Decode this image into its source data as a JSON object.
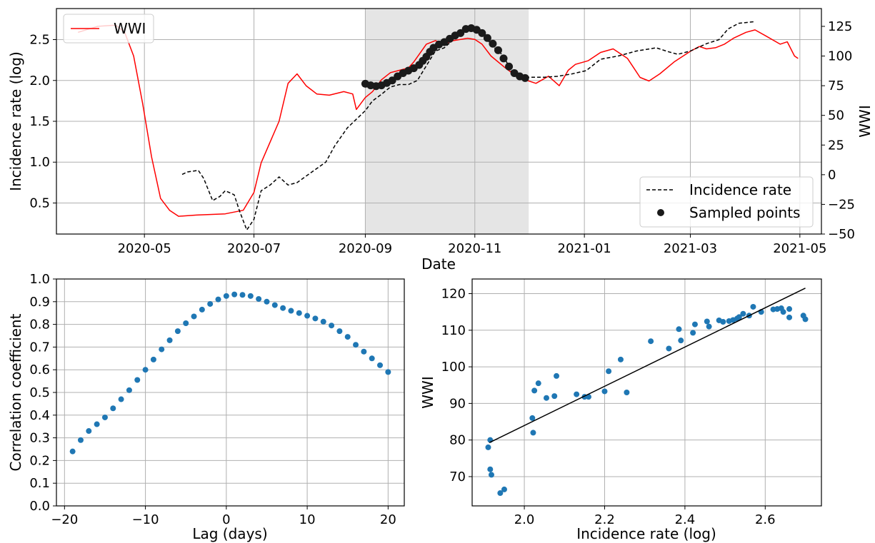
{
  "chart_data": [
    {
      "id": "top",
      "type": "line",
      "xlabel": "Date",
      "ylabel_left": "Incidence rate (log)",
      "ylabel_right": "WWI",
      "x_range": [
        "2020-03-13",
        "2021-05-13"
      ],
      "ylim_left": [
        0.12,
        2.88
      ],
      "ylim_right": [
        -50,
        140
      ],
      "x_ticks": [
        "2020-05",
        "2020-07",
        "2020-09",
        "2020-11",
        "2021-01",
        "2021-03",
        "2021-05"
      ],
      "y_ticks_left": [
        "0.5",
        "1.0",
        "1.5",
        "2.0",
        "2.5"
      ],
      "y_ticks_left_values": [
        0.5,
        1.0,
        1.5,
        2.0,
        2.5
      ],
      "y_ticks_right": [
        "−50",
        "−25",
        "0",
        "25",
        "50",
        "75",
        "100",
        "125"
      ],
      "y_ticks_right_values": [
        -50,
        -25,
        0,
        25,
        50,
        75,
        100,
        125
      ],
      "shaded_region": [
        "2020-09-01",
        "2020-12-01"
      ],
      "grid": true,
      "legend_right_axis_location": "upper-left",
      "legend_left_axis_location": "lower-right",
      "series": [
        {
          "name": "WWI",
          "axis": "right",
          "color": "#ff0000",
          "style": "solid",
          "points": [
            [
              "2020-03-25",
              120
            ],
            [
              "2020-04-05",
              125
            ],
            [
              "2020-04-15",
              126
            ],
            [
              "2020-04-20",
              120
            ],
            [
              "2020-04-25",
              100
            ],
            [
              "2020-04-30",
              60
            ],
            [
              "2020-05-05",
              15
            ],
            [
              "2020-05-10",
              -20
            ],
            [
              "2020-05-15",
              -30
            ],
            [
              "2020-05-20",
              -35
            ],
            [
              "2020-05-30",
              -34
            ],
            [
              "2020-06-15",
              -33
            ],
            [
              "2020-06-25",
              -30
            ],
            [
              "2020-07-01",
              -15
            ],
            [
              "2020-07-05",
              10
            ],
            [
              "2020-07-15",
              45
            ],
            [
              "2020-07-20",
              77
            ],
            [
              "2020-07-25",
              85
            ],
            [
              "2020-07-30",
              75
            ],
            [
              "2020-08-05",
              68
            ],
            [
              "2020-08-12",
              67
            ],
            [
              "2020-08-20",
              70
            ],
            [
              "2020-08-25",
              68
            ],
            [
              "2020-08-27",
              55
            ],
            [
              "2020-09-01",
              65
            ],
            [
              "2020-09-05",
              70
            ],
            [
              "2020-09-10",
              80
            ],
            [
              "2020-09-15",
              86
            ],
            [
              "2020-09-20",
              88
            ],
            [
              "2020-09-25",
              90
            ],
            [
              "2020-09-28",
              95
            ],
            [
              "2020-10-05",
              110
            ],
            [
              "2020-10-10",
              113
            ],
            [
              "2020-10-15",
              110
            ],
            [
              "2020-10-20",
              113
            ],
            [
              "2020-10-28",
              115
            ],
            [
              "2020-11-01",
              114
            ],
            [
              "2020-11-05",
              110
            ],
            [
              "2020-11-10",
              100
            ],
            [
              "2020-11-18",
              90
            ],
            [
              "2020-11-25",
              82
            ],
            [
              "2020-12-05",
              77
            ],
            [
              "2020-12-12",
              83
            ],
            [
              "2020-12-18",
              75
            ],
            [
              "2020-12-23",
              88
            ],
            [
              "2020-12-27",
              93
            ],
            [
              "2021-01-03",
              96
            ],
            [
              "2021-01-10",
              103
            ],
            [
              "2021-01-17",
              106
            ],
            [
              "2021-01-25",
              98
            ],
            [
              "2021-02-01",
              82
            ],
            [
              "2021-02-06",
              79
            ],
            [
              "2021-02-12",
              85
            ],
            [
              "2021-02-20",
              95
            ],
            [
              "2021-03-01",
              104
            ],
            [
              "2021-03-06",
              108
            ],
            [
              "2021-03-10",
              106
            ],
            [
              "2021-03-15",
              107
            ],
            [
              "2021-03-20",
              110
            ],
            [
              "2021-03-25",
              115
            ],
            [
              "2021-04-01",
              120
            ],
            [
              "2021-04-06",
              122
            ],
            [
              "2021-04-12",
              117
            ],
            [
              "2021-04-20",
              110
            ],
            [
              "2021-04-24",
              112
            ],
            [
              "2021-04-28",
              100
            ],
            [
              "2021-04-30",
              98
            ]
          ]
        },
        {
          "name": "Incidence rate",
          "axis": "left",
          "color": "#000000",
          "style": "dashed",
          "points": [
            [
              "2020-05-22",
              0.85
            ],
            [
              "2020-05-25",
              0.88
            ],
            [
              "2020-05-31",
              0.9
            ],
            [
              "2020-06-03",
              0.8
            ],
            [
              "2020-06-08",
              0.53
            ],
            [
              "2020-06-12",
              0.58
            ],
            [
              "2020-06-15",
              0.65
            ],
            [
              "2020-06-20",
              0.6
            ],
            [
              "2020-06-23",
              0.4
            ],
            [
              "2020-06-27",
              0.17
            ],
            [
              "2020-07-01",
              0.3
            ],
            [
              "2020-07-05",
              0.65
            ],
            [
              "2020-07-10",
              0.72
            ],
            [
              "2020-07-15",
              0.82
            ],
            [
              "2020-07-20",
              0.72
            ],
            [
              "2020-07-25",
              0.75
            ],
            [
              "2020-08-01",
              0.86
            ],
            [
              "2020-08-10",
              1.0
            ],
            [
              "2020-08-15",
              1.2
            ],
            [
              "2020-08-22",
              1.42
            ],
            [
              "2020-09-01",
              1.63
            ],
            [
              "2020-09-05",
              1.75
            ],
            [
              "2020-09-10",
              1.83
            ],
            [
              "2020-09-15",
              1.92
            ],
            [
              "2020-09-20",
              1.95
            ],
            [
              "2020-09-25",
              1.95
            ],
            [
              "2020-09-30",
              2.0
            ],
            [
              "2020-10-05",
              2.18
            ],
            [
              "2020-10-10",
              2.36
            ],
            [
              "2020-10-15",
              2.4
            ],
            [
              "2020-10-20",
              2.5
            ],
            [
              "2020-10-25",
              2.6
            ],
            [
              "2020-10-28",
              2.64
            ],
            [
              "2020-11-05",
              2.6
            ],
            [
              "2020-11-10",
              2.44
            ],
            [
              "2020-11-17",
              2.3
            ],
            [
              "2020-11-22",
              2.08
            ],
            [
              "2020-12-01",
              2.04
            ],
            [
              "2020-12-10",
              2.04
            ],
            [
              "2020-12-17",
              2.05
            ],
            [
              "2020-12-25",
              2.08
            ],
            [
              "2021-01-02",
              2.12
            ],
            [
              "2021-01-10",
              2.26
            ],
            [
              "2021-01-20",
              2.3
            ],
            [
              "2021-01-30",
              2.36
            ],
            [
              "2021-02-10",
              2.4
            ],
            [
              "2021-02-17",
              2.35
            ],
            [
              "2021-02-22",
              2.32
            ],
            [
              "2021-03-01",
              2.36
            ],
            [
              "2021-03-10",
              2.45
            ],
            [
              "2021-03-17",
              2.5
            ],
            [
              "2021-03-22",
              2.63
            ],
            [
              "2021-03-28",
              2.7
            ],
            [
              "2021-04-06",
              2.72
            ]
          ]
        },
        {
          "name": "Sampled points",
          "axis": "left",
          "color": "#1a1a1a",
          "style": "markers",
          "points": [
            [
              "2020-09-01",
              1.96
            ],
            [
              "2020-09-04",
              1.94
            ],
            [
              "2020-09-07",
              1.93
            ],
            [
              "2020-09-10",
              1.94
            ],
            [
              "2020-09-13",
              1.97
            ],
            [
              "2020-09-16",
              2.0
            ],
            [
              "2020-09-19",
              2.05
            ],
            [
              "2020-09-22",
              2.09
            ],
            [
              "2020-09-25",
              2.12
            ],
            [
              "2020-09-28",
              2.15
            ],
            [
              "2020-10-01",
              2.19
            ],
            [
              "2020-10-03",
              2.24
            ],
            [
              "2020-10-05",
              2.29
            ],
            [
              "2020-10-07",
              2.35
            ],
            [
              "2020-10-09",
              2.4
            ],
            [
              "2020-10-12",
              2.44
            ],
            [
              "2020-10-15",
              2.47
            ],
            [
              "2020-10-18",
              2.51
            ],
            [
              "2020-10-21",
              2.55
            ],
            [
              "2020-10-24",
              2.58
            ],
            [
              "2020-10-27",
              2.63
            ],
            [
              "2020-10-30",
              2.64
            ],
            [
              "2020-11-02",
              2.62
            ],
            [
              "2020-11-05",
              2.58
            ],
            [
              "2020-11-08",
              2.52
            ],
            [
              "2020-11-11",
              2.45
            ],
            [
              "2020-11-14",
              2.37
            ],
            [
              "2020-11-17",
              2.27
            ],
            [
              "2020-11-20",
              2.17
            ],
            [
              "2020-11-23",
              2.09
            ],
            [
              "2020-11-26",
              2.05
            ],
            [
              "2020-11-29",
              2.03
            ]
          ]
        }
      ]
    },
    {
      "id": "bottom-left",
      "type": "scatter",
      "xlabel": "Lag (days)",
      "ylabel": "Correlation coefficient",
      "xlim": [
        -21,
        22
      ],
      "ylim": [
        0.0,
        1.0
      ],
      "x_ticks": [
        "−20",
        "−10",
        "0",
        "10",
        "20"
      ],
      "x_ticks_values": [
        -20,
        -10,
        0,
        10,
        20
      ],
      "y_ticks": [
        "0.0",
        "0.1",
        "0.2",
        "0.3",
        "0.4",
        "0.5",
        "0.6",
        "0.7",
        "0.8",
        "0.9",
        "1.0"
      ],
      "y_ticks_values": [
        0,
        0.1,
        0.2,
        0.3,
        0.4,
        0.5,
        0.6,
        0.7,
        0.8,
        0.9,
        1.0
      ],
      "grid": true,
      "color": "#1f77b4",
      "x": [
        -19,
        -18,
        -17,
        -16,
        -15,
        -14,
        -13,
        -12,
        -11,
        -10,
        -9,
        -8,
        -7,
        -6,
        -5,
        -4,
        -3,
        -2,
        -1,
        0,
        1,
        2,
        3,
        4,
        5,
        6,
        7,
        8,
        9,
        10,
        11,
        12,
        13,
        14,
        15,
        16,
        17,
        18,
        19,
        20
      ],
      "y": [
        0.24,
        0.29,
        0.33,
        0.36,
        0.39,
        0.43,
        0.47,
        0.51,
        0.555,
        0.6,
        0.645,
        0.69,
        0.73,
        0.77,
        0.805,
        0.835,
        0.865,
        0.89,
        0.91,
        0.925,
        0.932,
        0.93,
        0.925,
        0.912,
        0.9,
        0.885,
        0.872,
        0.86,
        0.85,
        0.838,
        0.826,
        0.812,
        0.795,
        0.77,
        0.745,
        0.71,
        0.68,
        0.65,
        0.62,
        0.59
      ]
    },
    {
      "id": "bottom-right",
      "type": "scatter",
      "xlabel": "Incidence rate (log)",
      "ylabel": "WWI",
      "xlim": [
        1.87,
        2.74
      ],
      "ylim": [
        62,
        124
      ],
      "x_ticks": [
        "2.0",
        "2.2",
        "2.4",
        "2.6"
      ],
      "x_ticks_values": [
        2.0,
        2.2,
        2.4,
        2.6
      ],
      "y_ticks": [
        "70",
        "80",
        "90",
        "100",
        "110",
        "120"
      ],
      "y_ticks_values": [
        70,
        80,
        90,
        100,
        110,
        120
      ],
      "grid": true,
      "color": "#1f77b4",
      "fit_line": {
        "x": [
          1.913,
          2.7
        ],
        "y": [
          79.3,
          121.5
        ],
        "color": "#000000"
      },
      "points": [
        [
          1.91,
          78
        ],
        [
          1.915,
          80
        ],
        [
          1.915,
          72
        ],
        [
          1.918,
          70.5
        ],
        [
          1.94,
          65.5
        ],
        [
          1.95,
          66.5
        ],
        [
          2.02,
          86
        ],
        [
          2.022,
          82
        ],
        [
          2.025,
          93.5
        ],
        [
          2.035,
          95.5
        ],
        [
          2.055,
          91.5
        ],
        [
          2.075,
          92
        ],
        [
          2.08,
          97.5
        ],
        [
          2.13,
          92.5
        ],
        [
          2.15,
          91.8
        ],
        [
          2.16,
          91.8
        ],
        [
          2.2,
          93.3
        ],
        [
          2.21,
          98.8
        ],
        [
          2.24,
          102
        ],
        [
          2.255,
          93
        ],
        [
          2.315,
          107
        ],
        [
          2.36,
          105
        ],
        [
          2.385,
          110.3
        ],
        [
          2.39,
          107.2
        ],
        [
          2.42,
          109.3
        ],
        [
          2.425,
          111.6
        ],
        [
          2.455,
          112.4
        ],
        [
          2.46,
          111
        ],
        [
          2.485,
          112.7
        ],
        [
          2.495,
          112.3
        ],
        [
          2.51,
          112.5
        ],
        [
          2.52,
          112.8
        ],
        [
          2.53,
          113.2
        ],
        [
          2.535,
          113.6
        ],
        [
          2.545,
          114.5
        ],
        [
          2.56,
          114
        ],
        [
          2.57,
          116.4
        ],
        [
          2.59,
          115
        ],
        [
          2.62,
          115.7
        ],
        [
          2.63,
          115.8
        ],
        [
          2.64,
          116
        ],
        [
          2.645,
          115
        ],
        [
          2.66,
          115.8
        ],
        [
          2.66,
          113.5
        ],
        [
          2.695,
          114
        ],
        [
          2.7,
          113
        ]
      ]
    }
  ]
}
